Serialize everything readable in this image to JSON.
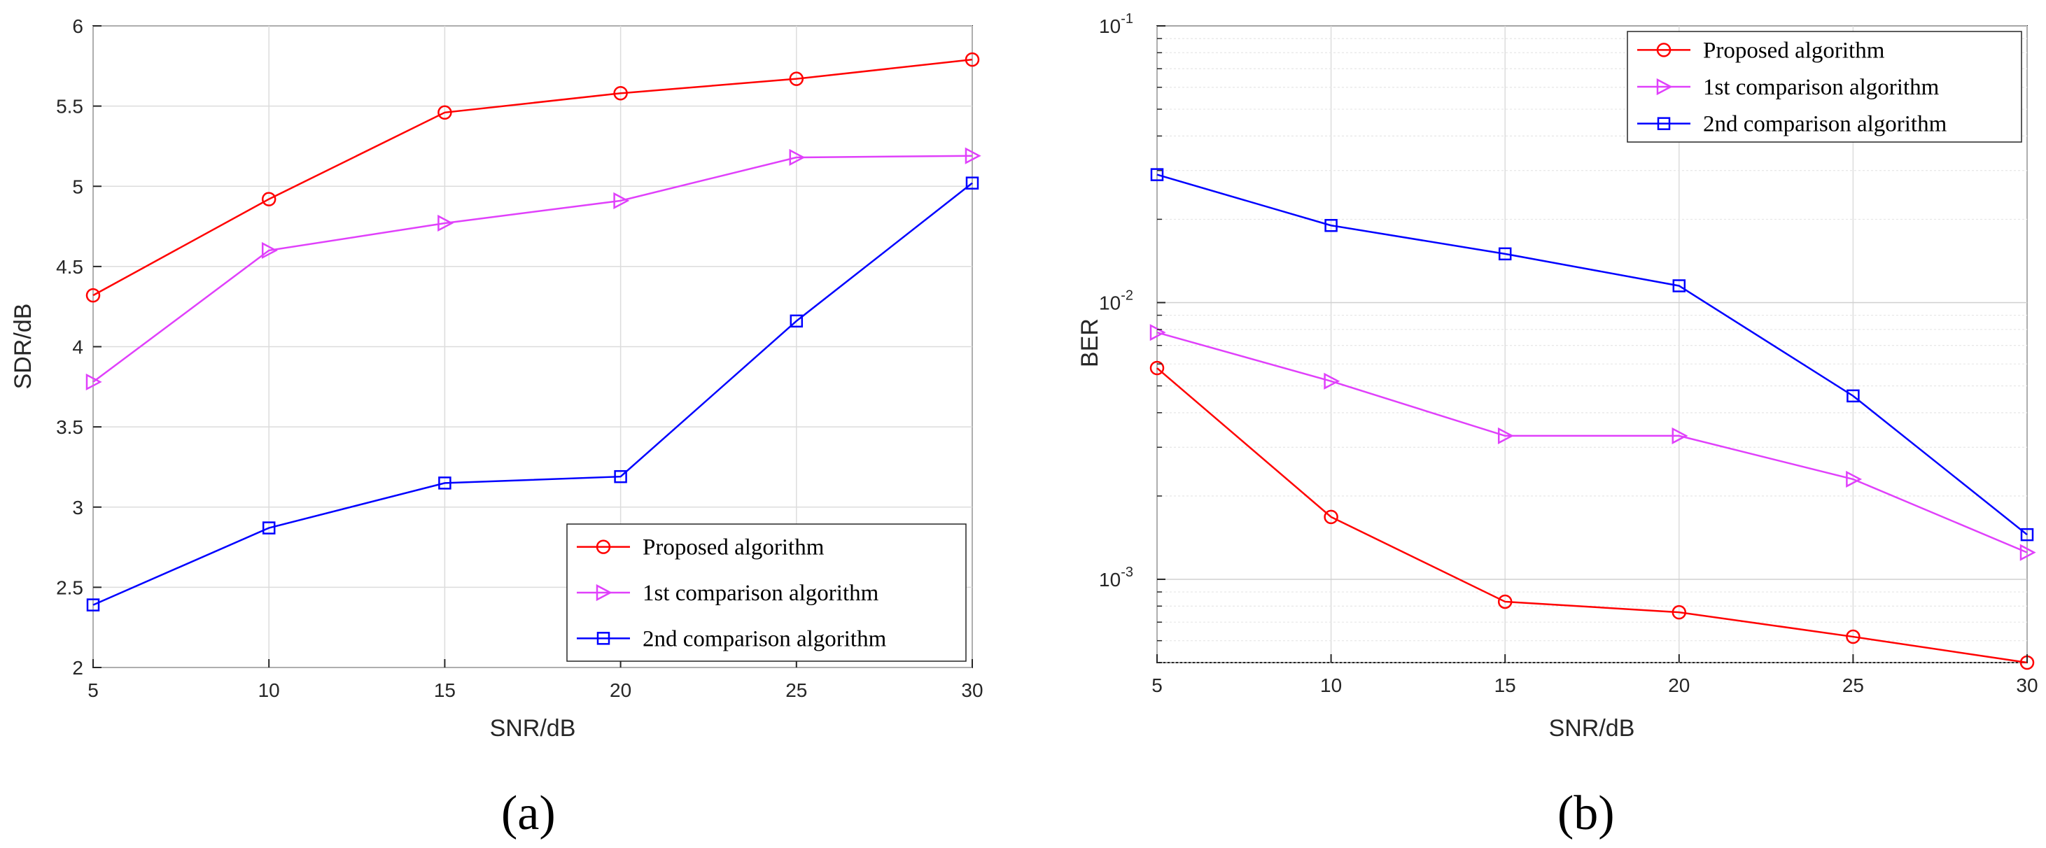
{
  "chart_data": [
    {
      "type": "line",
      "panel_label": "a",
      "xlabel": "SNR/dB",
      "ylabel": "SDR/dB",
      "yscale": "linear",
      "xlim": [
        5,
        30
      ],
      "ylim": [
        2,
        6
      ],
      "xticks": [
        "5",
        "10",
        "15",
        "20",
        "25",
        "30"
      ],
      "yticks": [
        "2",
        "2.5",
        "3",
        "3.5",
        "4",
        "4.5",
        "5",
        "5.5",
        "6"
      ],
      "grid": true,
      "legend_position": "lower-right",
      "x": [
        5,
        10,
        15,
        20,
        25,
        30
      ],
      "series": [
        {
          "name": "Proposed algorithm",
          "color": "#ff0000",
          "marker": "circle",
          "values": [
            4.32,
            4.92,
            5.46,
            5.58,
            5.67,
            5.79
          ]
        },
        {
          "name": "1st comparison algorithm",
          "color": "#e040fb",
          "marker": "triangle-right",
          "values": [
            3.78,
            4.6,
            4.77,
            4.91,
            5.18,
            5.19
          ]
        },
        {
          "name": "2nd comparison algorithm",
          "color": "#0000ff",
          "marker": "square",
          "values": [
            2.39,
            2.87,
            3.15,
            3.19,
            4.16,
            5.02
          ]
        }
      ]
    },
    {
      "type": "line",
      "panel_label": "b",
      "xlabel": "SNR/dB",
      "ylabel": "BER",
      "yscale": "log",
      "xlim": [
        5,
        30
      ],
      "ylim": [
        0.0005,
        0.1
      ],
      "xticks": [
        "5",
        "10",
        "15",
        "20",
        "25",
        "30"
      ],
      "yticks": [
        {
          "base": "10",
          "exp": "-3",
          "value": 0.001
        },
        {
          "base": "10",
          "exp": "-2",
          "value": 0.01
        },
        {
          "base": "10",
          "exp": "-1",
          "value": 0.1
        }
      ],
      "grid": true,
      "legend_position": "top-right",
      "x": [
        5,
        10,
        15,
        20,
        25,
        30
      ],
      "series": [
        {
          "name": "Proposed algorithm",
          "color": "#ff0000",
          "marker": "circle",
          "values": [
            0.0058,
            0.00168,
            0.00083,
            0.00076,
            0.00062,
            0.0005
          ]
        },
        {
          "name": "1st comparison algorithm",
          "color": "#e040fb",
          "marker": "triangle-right",
          "values": [
            0.0078,
            0.0052,
            0.0033,
            0.0033,
            0.0023,
            0.00125
          ]
        },
        {
          "name": "2nd comparison algorithm",
          "color": "#0000ff",
          "marker": "square",
          "values": [
            0.029,
            0.019,
            0.015,
            0.0115,
            0.0046,
            0.00145
          ]
        }
      ]
    }
  ],
  "captions": {
    "a": "(a)",
    "b": "(b)"
  }
}
